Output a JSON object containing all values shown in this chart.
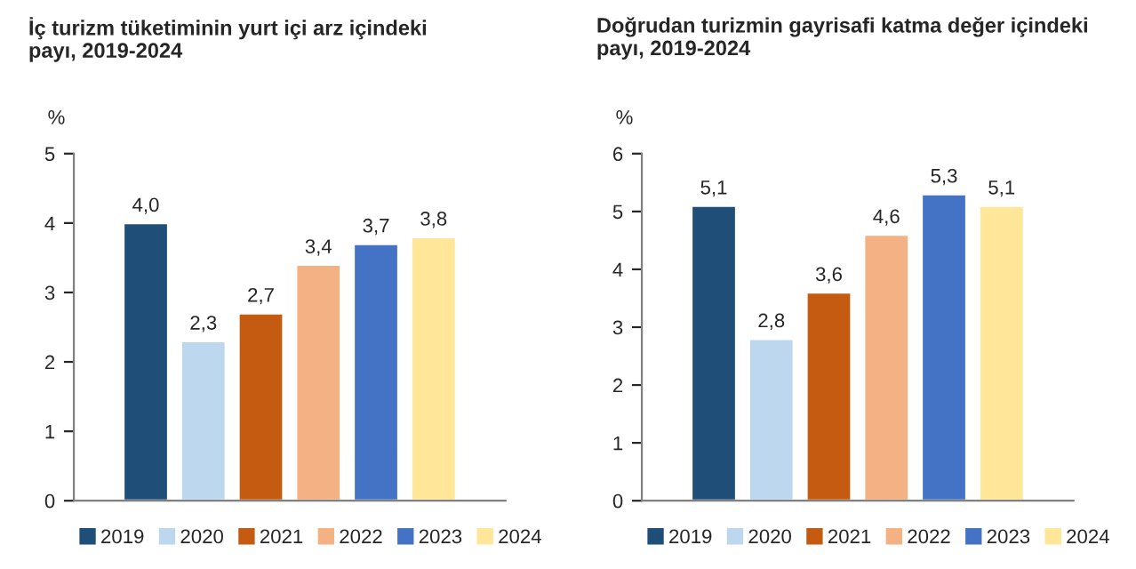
{
  "chart_data": [
    {
      "type": "bar",
      "title": "İç turizm tüketiminin yurt içi arz içindeki\npayı, 2019-2024",
      "ylabel": "%",
      "categories": [
        null
      ],
      "ylim": [
        0,
        5
      ],
      "yticks": [
        0,
        1,
        2,
        3,
        4,
        5
      ],
      "grid": false,
      "legend": "bottom",
      "series": [
        {
          "name": "2019",
          "color": "#1f4e79",
          "values": [
            4.0
          ],
          "value_labels": [
            "4,0"
          ]
        },
        {
          "name": "2020",
          "color": "#bdd7ee",
          "values": [
            2.3
          ],
          "value_labels": [
            "2,3"
          ]
        },
        {
          "name": "2021",
          "color": "#c55a11",
          "values": [
            2.7
          ],
          "value_labels": [
            "2,7"
          ]
        },
        {
          "name": "2022",
          "color": "#f4b183",
          "values": [
            3.4
          ],
          "value_labels": [
            "3,4"
          ]
        },
        {
          "name": "2023",
          "color": "#4472c4",
          "values": [
            3.7
          ],
          "value_labels": [
            "3,7"
          ]
        },
        {
          "name": "2024",
          "color": "#ffe699",
          "values": [
            3.8
          ],
          "value_labels": [
            "3,8"
          ]
        }
      ]
    },
    {
      "type": "bar",
      "title": "Doğrudan turizmin gayrisafi katma değer içindeki\npayı, 2019-2024",
      "ylabel": "%",
      "categories": [
        null
      ],
      "ylim": [
        0,
        6
      ],
      "yticks": [
        0,
        1,
        2,
        3,
        4,
        5,
        6
      ],
      "grid": false,
      "legend": "bottom",
      "series": [
        {
          "name": "2019",
          "color": "#1f4e79",
          "values": [
            5.1
          ],
          "value_labels": [
            "5,1"
          ]
        },
        {
          "name": "2020",
          "color": "#bdd7ee",
          "values": [
            2.8
          ],
          "value_labels": [
            "2,8"
          ]
        },
        {
          "name": "2021",
          "color": "#c55a11",
          "values": [
            3.6
          ],
          "value_labels": [
            "3,6"
          ]
        },
        {
          "name": "2022",
          "color": "#f4b183",
          "values": [
            4.6
          ],
          "value_labels": [
            "4,6"
          ]
        },
        {
          "name": "2023",
          "color": "#4472c4",
          "values": [
            5.3
          ],
          "value_labels": [
            "5,3"
          ]
        },
        {
          "name": "2024",
          "color": "#ffe699",
          "values": [
            5.1
          ],
          "value_labels": [
            "5,1"
          ]
        }
      ]
    }
  ]
}
